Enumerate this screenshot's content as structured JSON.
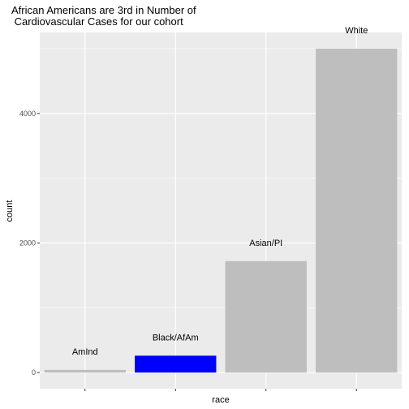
{
  "chart_data": {
    "type": "bar",
    "title_lines": [
      "African Americans are 3rd in Number of",
      " Cardiovascular Cases for our cohort"
    ],
    "xlabel": "race",
    "ylabel": "count",
    "categories": [
      "AmInd",
      "Black/AfAm",
      "Asian/PI",
      "White"
    ],
    "values": [
      40,
      260,
      1720,
      5000
    ],
    "bar_colors": [
      "#bebebe",
      "#0000ff",
      "#bebebe",
      "#bebebe"
    ],
    "data_labels": [
      "AmInd",
      "Black/AfAm",
      "Asian/PI",
      "White"
    ],
    "yticks": [
      0,
      2000,
      4000
    ],
    "ylim": [
      -250,
      5250
    ],
    "panel_background": "#ebebeb",
    "grid_color": "#ffffff",
    "grid": true,
    "legend": "none"
  }
}
